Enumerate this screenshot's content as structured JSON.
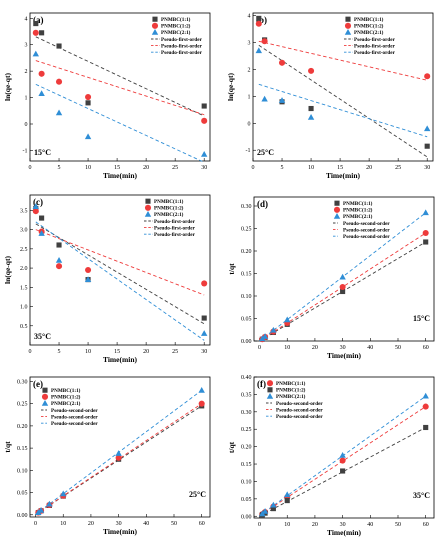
{
  "figure": {
    "colors": {
      "s1": "#404040",
      "s2": "#ee3b3b",
      "s3": "#2f8ed6"
    }
  },
  "chart_data": [
    {
      "type": "scatter",
      "panel_label": "(a)",
      "temperature": "15°C",
      "xlabel": "Time(min)",
      "ylabel": "ln(qe-qt)",
      "xlim": [
        0,
        31
      ],
      "ylim": [
        -1.4,
        4.2
      ],
      "xticks": [
        0,
        5,
        10,
        15,
        20,
        25,
        30
      ],
      "yticks": [
        -1,
        0,
        1,
        2,
        3,
        4
      ],
      "legend_position": "top-right",
      "series": [
        {
          "name": "PNMBC(1:1)",
          "marker": "square",
          "color": "#404040",
          "x": [
            1,
            2,
            5,
            10,
            30
          ],
          "y": [
            3.8,
            3.45,
            2.95,
            0.8,
            0.68
          ]
        },
        {
          "name": "PNMBC(1:2)",
          "marker": "circle",
          "color": "#ee3b3b",
          "x": [
            1,
            2,
            5,
            10,
            30
          ],
          "y": [
            3.45,
            1.9,
            1.6,
            1.02,
            0.12
          ]
        },
        {
          "name": "PNMBC(2:1)",
          "marker": "triangle",
          "color": "#2f8ed6",
          "x": [
            1,
            2,
            5,
            10,
            30
          ],
          "y": [
            2.65,
            1.15,
            0.42,
            -0.48,
            -1.15
          ]
        }
      ],
      "fits": [
        {
          "name": "Pseudo-first-order",
          "color": "#404040",
          "x": [
            1,
            30
          ],
          "y": [
            3.3,
            0.3
          ]
        },
        {
          "name": "Pseudo-first-order",
          "color": "#ee3b3b",
          "x": [
            1,
            30
          ],
          "y": [
            2.4,
            0.35
          ]
        },
        {
          "name": "Pseudo-first-order",
          "color": "#2f8ed6",
          "x": [
            1,
            30
          ],
          "y": [
            1.5,
            -1.45
          ]
        }
      ]
    },
    {
      "type": "scatter",
      "panel_label": "(b)",
      "temperature": "25°C",
      "xlabel": "Time(min)",
      "ylabel": "ln(qe-qt)",
      "xlim": [
        0,
        31
      ],
      "ylim": [
        -1.4,
        4.1
      ],
      "xticks": [
        0,
        5,
        10,
        15,
        20,
        25,
        30
      ],
      "yticks": [
        -1,
        0,
        1,
        2,
        3,
        4
      ],
      "legend_position": "top-right",
      "series": [
        {
          "name": "PNMBC(1:1)",
          "marker": "square",
          "color": "#404040",
          "x": [
            1,
            2,
            5,
            10,
            30
          ],
          "y": [
            3.9,
            3.1,
            0.8,
            0.55,
            -0.85
          ]
        },
        {
          "name": "PNMBC(1:2)",
          "marker": "circle",
          "color": "#ee3b3b",
          "x": [
            1,
            2,
            5,
            10,
            30
          ],
          "y": [
            3.7,
            3.05,
            2.25,
            1.95,
            1.75
          ]
        },
        {
          "name": "PNMBC(2:1)",
          "marker": "triangle",
          "color": "#2f8ed6",
          "x": [
            1,
            2,
            5,
            10,
            30
          ],
          "y": [
            2.7,
            0.9,
            0.85,
            0.22,
            -0.2
          ]
        }
      ],
      "fits": [
        {
          "name": "Pseudo-first-order",
          "color": "#404040",
          "x": [
            1,
            30
          ],
          "y": [
            2.9,
            -1.25
          ]
        },
        {
          "name": "Pseudo-first-order",
          "color": "#ee3b3b",
          "x": [
            1,
            30
          ],
          "y": [
            3.05,
            1.6
          ]
        },
        {
          "name": "Pseudo-first-order",
          "color": "#2f8ed6",
          "x": [
            1,
            30
          ],
          "y": [
            1.45,
            -0.5
          ]
        }
      ]
    },
    {
      "type": "scatter",
      "panel_label": "(c)",
      "temperature": "35°C",
      "xlabel": "Time(min)",
      "ylabel": "ln(qe-qt)",
      "xlim": [
        0,
        31
      ],
      "ylim": [
        0,
        3.9
      ],
      "xticks": [
        0,
        5,
        10,
        15,
        20,
        25,
        30
      ],
      "yticks": [
        0.5,
        1.0,
        1.5,
        2.0,
        2.5,
        3.0,
        3.5
      ],
      "legend_position": "top-right",
      "series": [
        {
          "name": "PNMBC(1:1)",
          "marker": "square",
          "color": "#404040",
          "x": [
            1,
            2,
            5,
            10,
            30
          ],
          "y": [
            3.55,
            3.3,
            2.6,
            1.7,
            0.7
          ]
        },
        {
          "name": "PNMBC(1:2)",
          "marker": "circle",
          "color": "#ee3b3b",
          "x": [
            1,
            2,
            5,
            10,
            30
          ],
          "y": [
            3.48,
            2.95,
            2.05,
            1.95,
            1.6
          ]
        },
        {
          "name": "PNMBC(2:1)",
          "marker": "triangle",
          "color": "#2f8ed6",
          "x": [
            1,
            2,
            5,
            10,
            30
          ],
          "y": [
            3.6,
            2.9,
            2.2,
            1.7,
            0.3
          ]
        }
      ],
      "fits": [
        {
          "name": "Pseudo-first-order",
          "color": "#404040",
          "x": [
            1,
            30
          ],
          "y": [
            3.15,
            0.55
          ]
        },
        {
          "name": "Pseudo-first-order",
          "color": "#ee3b3b",
          "x": [
            1,
            30
          ],
          "y": [
            3.0,
            1.3
          ]
        },
        {
          "name": "Pseudo-first-order",
          "color": "#2f8ed6",
          "x": [
            1,
            30
          ],
          "y": [
            3.2,
            0.12
          ]
        }
      ]
    },
    {
      "type": "scatter",
      "panel_label": "(d)",
      "temperature": "15°C",
      "xlabel": "Time(min)",
      "ylabel": "t/qt",
      "xlim": [
        -2,
        63
      ],
      "ylim": [
        0,
        0.32
      ],
      "xticks": [
        0,
        10,
        20,
        30,
        40,
        50,
        60
      ],
      "yticks": [
        0.0,
        0.05,
        0.1,
        0.15,
        0.2,
        0.25,
        0.3
      ],
      "legend_position": "top-left",
      "series": [
        {
          "name": "PNMBC(1:1)",
          "marker": "square",
          "color": "#404040",
          "x": [
            1,
            2,
            5,
            10,
            30,
            60
          ],
          "y": [
            0.004,
            0.008,
            0.019,
            0.037,
            0.11,
            0.22
          ]
        },
        {
          "name": "PNMBC(1:2)",
          "marker": "circle",
          "color": "#ee3b3b",
          "x": [
            1,
            2,
            5,
            10,
            30,
            60
          ],
          "y": [
            0.004,
            0.009,
            0.021,
            0.04,
            0.12,
            0.24
          ]
        },
        {
          "name": "PNMBC(2:1)",
          "marker": "triangle",
          "color": "#2f8ed6",
          "x": [
            1,
            2,
            5,
            10,
            30,
            60
          ],
          "y": [
            0.005,
            0.01,
            0.024,
            0.047,
            0.142,
            0.285
          ]
        }
      ],
      "fits": [
        {
          "name": "Pseudo-second-order",
          "color": "#404040",
          "x": [
            0,
            60
          ],
          "y": [
            0.0,
            0.22
          ]
        },
        {
          "name": "Pseudo-second-order",
          "color": "#ee3b3b",
          "x": [
            0,
            60
          ],
          "y": [
            0.0,
            0.24
          ]
        },
        {
          "name": "Pseudo-second-order",
          "color": "#2f8ed6",
          "x": [
            0,
            60
          ],
          "y": [
            0.0,
            0.285
          ]
        }
      ]
    },
    {
      "type": "scatter",
      "panel_label": "(e)",
      "temperature": "25°C",
      "xlabel": "Time(min)",
      "ylabel": "t/qt",
      "xlim": [
        -2,
        63
      ],
      "ylim": [
        -0.005,
        0.31
      ],
      "xticks": [
        0,
        10,
        20,
        30,
        40,
        50,
        60
      ],
      "yticks": [
        0.0,
        0.05,
        0.1,
        0.15,
        0.2,
        0.25,
        0.3
      ],
      "legend_position": "top-left",
      "series": [
        {
          "name": "PNMBC(1:1)",
          "marker": "square",
          "color": "#404040",
          "x": [
            1,
            2,
            5,
            10,
            30,
            60
          ],
          "y": [
            0.005,
            0.009,
            0.021,
            0.042,
            0.125,
            0.245
          ]
        },
        {
          "name": "PNMBC(1:2)",
          "marker": "circle",
          "color": "#ee3b3b",
          "x": [
            1,
            2,
            5,
            10,
            30,
            60
          ],
          "y": [
            0.005,
            0.009,
            0.022,
            0.043,
            0.128,
            0.25
          ]
        },
        {
          "name": "PNMBC(2:1)",
          "marker": "triangle",
          "color": "#2f8ed6",
          "x": [
            1,
            2,
            5,
            10,
            30,
            60
          ],
          "y": [
            0.005,
            0.01,
            0.024,
            0.047,
            0.138,
            0.28
          ]
        }
      ],
      "fits": [
        {
          "name": "Pseudo-second-order",
          "color": "#404040",
          "x": [
            0,
            60
          ],
          "y": [
            0.001,
            0.245
          ]
        },
        {
          "name": "Pseudo-second-order",
          "color": "#ee3b3b",
          "x": [
            0,
            60
          ],
          "y": [
            0.001,
            0.25
          ]
        },
        {
          "name": "Pseudo-second-order",
          "color": "#2f8ed6",
          "x": [
            0,
            60
          ],
          "y": [
            0.001,
            0.28
          ]
        }
      ]
    },
    {
      "type": "scatter",
      "panel_label": "(f)",
      "temperature": "35°C",
      "xlabel": "Time(min)",
      "ylabel": "t/qt",
      "xlim": [
        -2,
        63
      ],
      "ylim": [
        -0.005,
        0.4
      ],
      "xticks": [
        0,
        10,
        20,
        30,
        40,
        50,
        60
      ],
      "yticks": [
        0.0,
        0.05,
        0.1,
        0.15,
        0.2,
        0.25,
        0.3,
        0.35,
        0.4
      ],
      "legend_position": "top-left",
      "series": [
        {
          "name": "PNMBC(1:1)",
          "marker": "circle",
          "color": "#ee3b3b",
          "x": [
            1,
            2,
            5,
            10,
            30,
            60
          ],
          "y": [
            0.006,
            0.012,
            0.028,
            0.055,
            0.16,
            0.315
          ]
        },
        {
          "name": "PNMBC(1:2)",
          "marker": "square",
          "color": "#404040",
          "x": [
            1,
            2,
            5,
            10,
            30,
            60
          ],
          "y": [
            0.004,
            0.009,
            0.022,
            0.045,
            0.13,
            0.255
          ]
        },
        {
          "name": "PNMBC(2:1)",
          "marker": "triangle",
          "color": "#2f8ed6",
          "x": [
            1,
            2,
            5,
            10,
            30,
            60
          ],
          "y": [
            0.007,
            0.014,
            0.032,
            0.062,
            0.175,
            0.345
          ]
        }
      ],
      "fits": [
        {
          "name": "Pseudo-second-order",
          "color": "#404040",
          "x": [
            0,
            60
          ],
          "y": [
            0.0,
            0.255
          ]
        },
        {
          "name": "Pseudo-second-order",
          "color": "#ee3b3b",
          "x": [
            0,
            60
          ],
          "y": [
            0.002,
            0.315
          ]
        },
        {
          "name": "Pseudo-second-order",
          "color": "#2f8ed6",
          "x": [
            0,
            60
          ],
          "y": [
            0.002,
            0.345
          ]
        }
      ]
    }
  ]
}
